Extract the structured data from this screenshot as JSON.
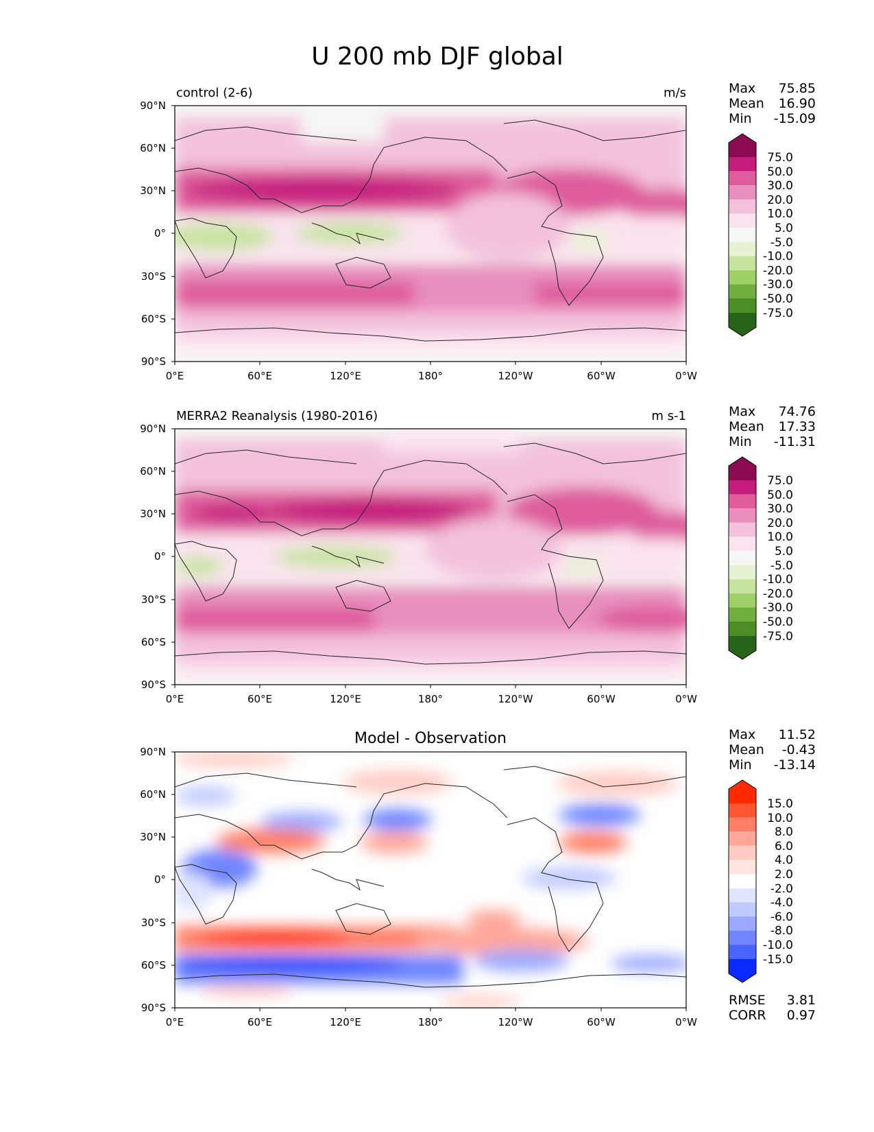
{
  "figure": {
    "title": "U 200 mb DJF global",
    "lat_ticks": [
      "90°N",
      "60°N",
      "30°N",
      "0°",
      "30°S",
      "60°S",
      "90°S"
    ],
    "lon_ticks": [
      "0°E",
      "60°E",
      "120°E",
      "180°",
      "120°W",
      "60°W",
      "0°W"
    ],
    "stat_labels": {
      "max": "Max",
      "mean": "Mean",
      "min": "Min",
      "rmse": "RMSE",
      "corr": "CORR"
    }
  },
  "colors": {
    "coastline": "#222222",
    "pink_levels": [
      "#8b0a50",
      "#c51b7d",
      "#de5c9c",
      "#e88fbd",
      "#f3c1dc",
      "#fbe3ef",
      "#f6f6f4",
      "#e6f3d2",
      "#c7e49f",
      "#9fd067",
      "#6fae3d",
      "#4b8e26",
      "#27641a"
    ],
    "diff_levels": [
      "#ff2a00",
      "#ff5533",
      "#ff7f66",
      "#ffa699",
      "#ffccc4",
      "#ffe5e0",
      "#ffffff",
      "#dfe4ff",
      "#c1caff",
      "#9aa8ff",
      "#7085ff",
      "#4a64ff",
      "#2a45ff",
      "#0a2aff"
    ]
  },
  "panels": [
    {
      "title_left": "control (2-6)",
      "title_right": "m/s",
      "title_center": "",
      "stats": {
        "max": "75.85",
        "mean": "16.90",
        "min": "-15.09"
      },
      "colorbar_levels": [
        "75.0",
        "50.0",
        "30.0",
        "20.0",
        "10.0",
        "5.0",
        "-5.0",
        "-10.0",
        "-20.0",
        "-30.0",
        "-50.0",
        "-75.0"
      ],
      "palette": "pink"
    },
    {
      "title_left": "MERRA2 Reanalysis (1980-2016)",
      "title_right": "m s-1",
      "title_center": "",
      "stats": {
        "max": "74.76",
        "mean": "17.33",
        "min": "-11.31"
      },
      "colorbar_levels": [
        "75.0",
        "50.0",
        "30.0",
        "20.0",
        "10.0",
        "5.0",
        "-5.0",
        "-10.0",
        "-20.0",
        "-30.0",
        "-50.0",
        "-75.0"
      ],
      "palette": "pink"
    },
    {
      "title_left": "",
      "title_right": "",
      "title_center": "Model - Observation",
      "stats": {
        "max": "11.52",
        "mean": "-0.43",
        "min": "-13.14"
      },
      "metrics": {
        "rmse": "3.81",
        "corr": "0.97"
      },
      "colorbar_levels": [
        "15.0",
        "10.0",
        "8.0",
        "6.0",
        "4.0",
        "2.0",
        "-2.0",
        "-4.0",
        "-6.0",
        "-8.0",
        "-10.0",
        "-15.0"
      ],
      "palette": "diff"
    }
  ]
}
